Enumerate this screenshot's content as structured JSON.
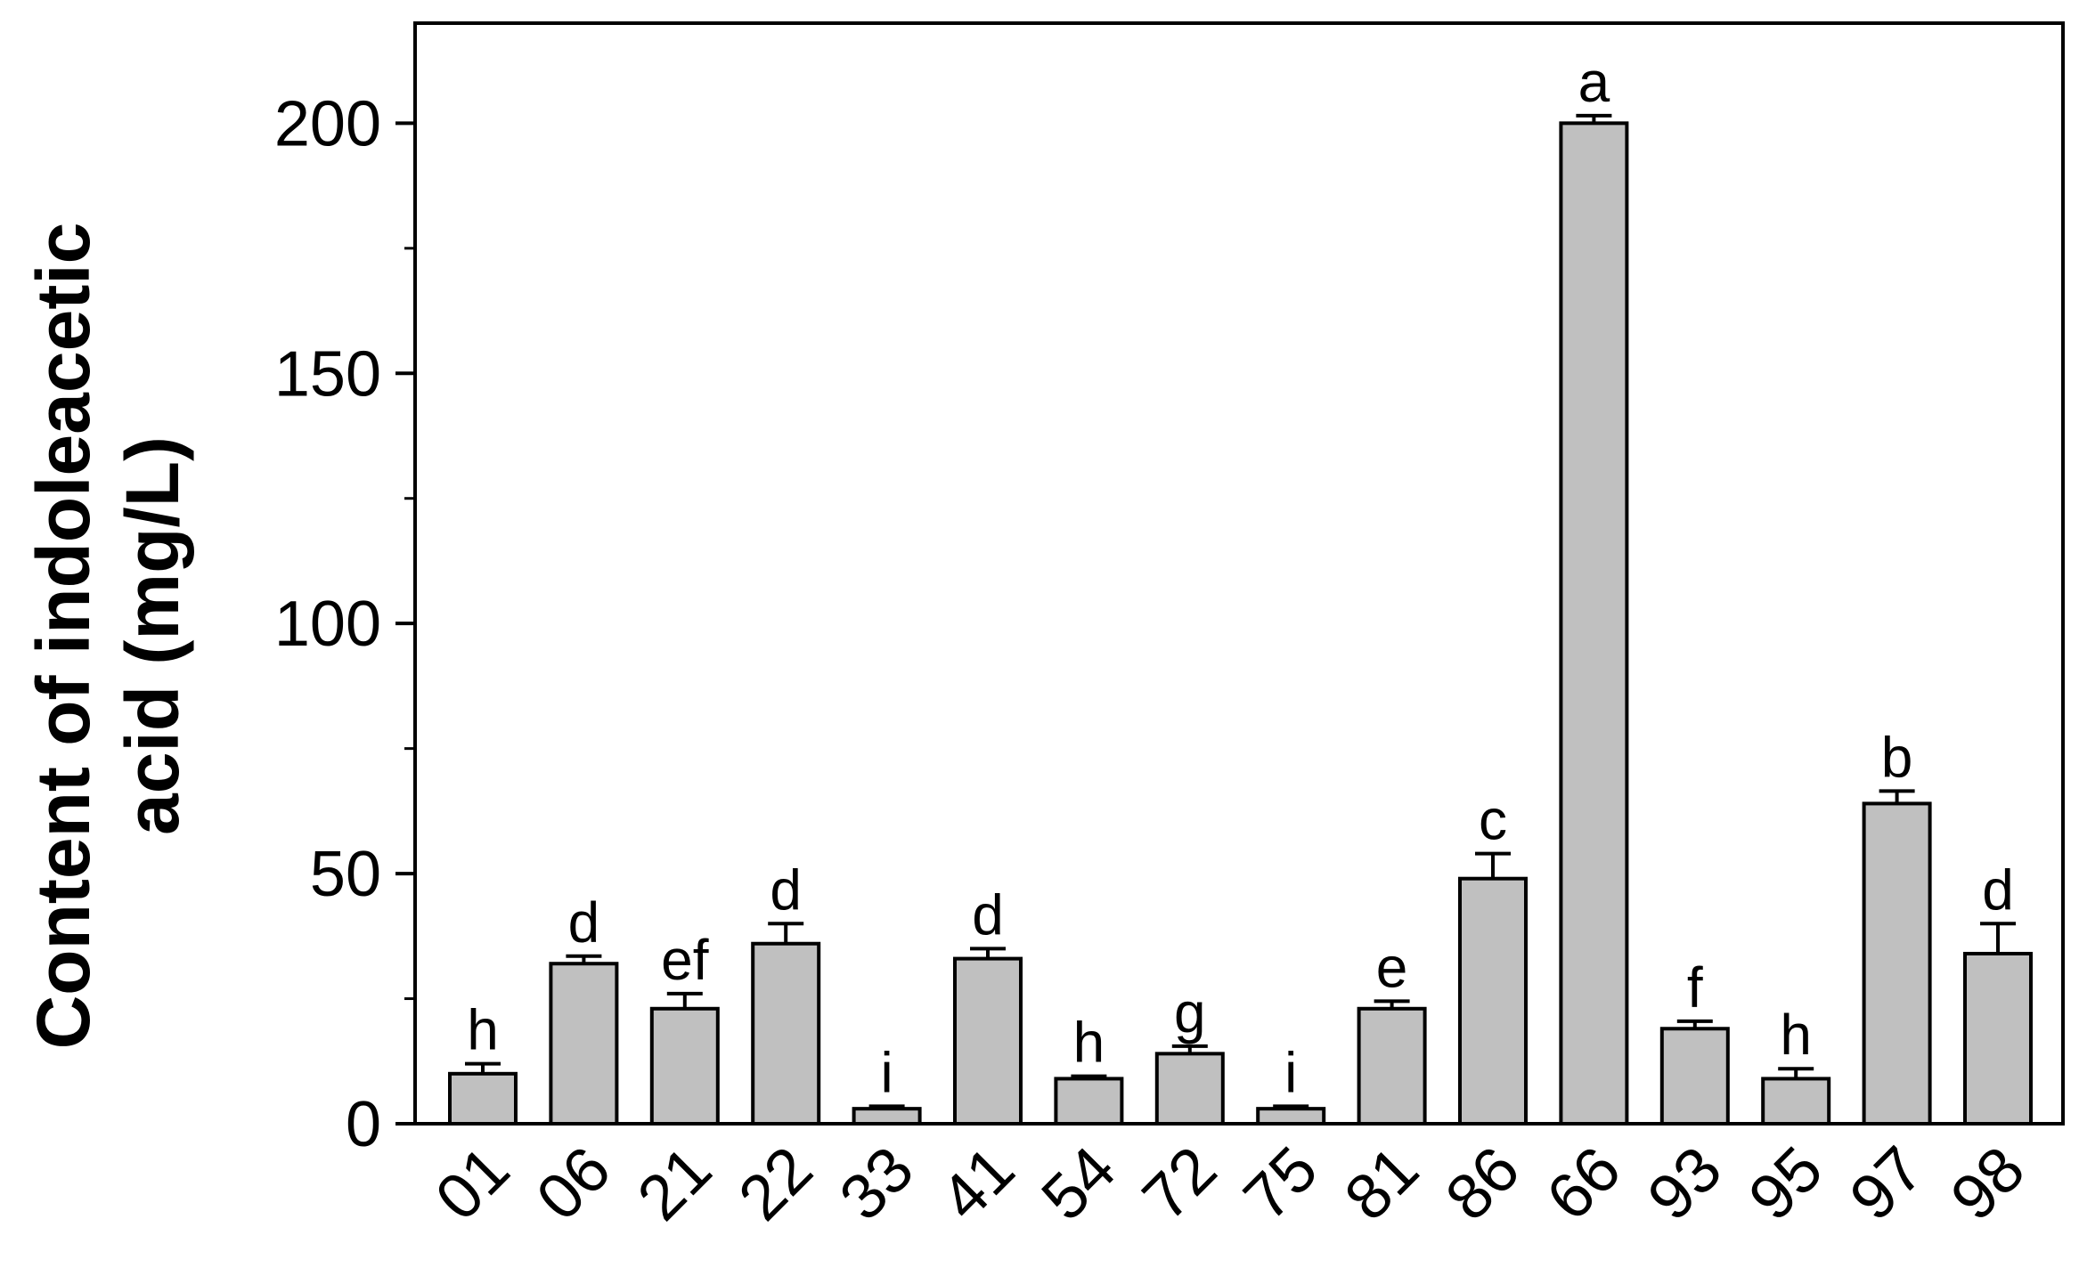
{
  "chart_data": {
    "type": "bar",
    "categories": [
      "01",
      "06",
      "21",
      "22",
      "33",
      "41",
      "54",
      "72",
      "75",
      "81",
      "86",
      "66",
      "93",
      "95",
      "97",
      "98"
    ],
    "values": [
      10,
      32,
      23,
      36,
      3,
      33,
      9,
      14,
      3,
      23,
      49,
      200,
      19,
      9,
      64,
      34
    ],
    "errors": [
      2,
      1.5,
      3,
      4,
      0.5,
      2,
      0.5,
      1.5,
      0.5,
      1.5,
      5,
      1.5,
      1.5,
      2,
      2.5,
      6
    ],
    "letters": [
      "h",
      "d",
      "ef",
      "d",
      "i",
      "d",
      "h",
      "g",
      "i",
      "e",
      "c",
      "a",
      "f",
      "h",
      "b",
      "d"
    ],
    "title": "",
    "xlabel": "",
    "ylabel_lines": [
      "Content of  indoleacetic",
      "acid (mg/L)"
    ],
    "ylim": [
      0,
      220
    ],
    "yticks": [
      0,
      50,
      100,
      150,
      200
    ],
    "grid": false,
    "colors": {
      "bar_fill": "#c0c0c0",
      "stroke": "#000000"
    }
  }
}
